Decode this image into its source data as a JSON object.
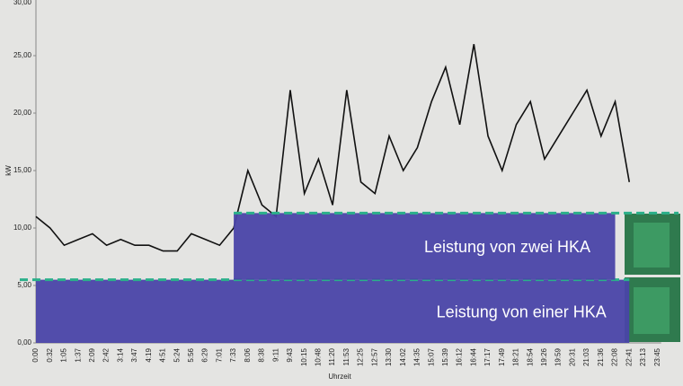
{
  "chart_data": {
    "type": "line",
    "y_label": "kW",
    "x_label": "Uhrzeit",
    "categories": [
      "0:00",
      "0:32",
      "1:05",
      "1:37",
      "2:09",
      "2:42",
      "3:14",
      "3:47",
      "4:19",
      "4:51",
      "5:24",
      "5:56",
      "6:29",
      "7:01",
      "7:33",
      "8:06",
      "8:38",
      "9:11",
      "9:43",
      "10:15",
      "10:48",
      "11:20",
      "11:53",
      "12:25",
      "12:57",
      "13:30",
      "14:02",
      "14:35",
      "15:07",
      "15:39",
      "16:12",
      "16:44",
      "17:17",
      "17:49",
      "18:21",
      "18:54",
      "19:26",
      "19:59",
      "20:31",
      "21:03",
      "21:36",
      "22:08",
      "22:41",
      "23:13",
      "23:45"
    ],
    "series": [
      {
        "color": "#111111",
        "values": [
          11,
          10,
          8.5,
          9,
          9.5,
          8.5,
          9,
          8.5,
          8.5,
          8,
          8,
          9.5,
          9,
          8.5,
          10,
          15,
          12,
          11,
          22,
          13,
          16,
          12,
          22,
          14,
          13,
          18,
          15,
          17,
          21,
          24,
          19,
          26,
          18,
          15,
          19,
          21,
          16,
          18,
          20,
          22,
          18,
          21,
          14,
          null,
          null
        ]
      }
    ],
    "ylim": [
      0,
      30
    ],
    "yticks": [
      {
        "value": 0,
        "label": "0,00"
      },
      {
        "value": 5,
        "label": "5,00"
      },
      {
        "value": 10,
        "label": "10,00"
      },
      {
        "value": 15,
        "label": "15,00"
      },
      {
        "value": 20,
        "label": "20,00"
      },
      {
        "value": 25,
        "label": "25,00"
      },
      {
        "value": 30,
        "label": "30,00"
      }
    ],
    "bands": [
      {
        "text": "Leistung von einer HKA",
        "ymin": 0,
        "ymax": 5.5,
        "start": "0:00",
        "end": "22:41",
        "color": "#4a44a8",
        "line_color": "#2bb08a"
      },
      {
        "text": "Leistung von zwei HKA",
        "ymin": 5.5,
        "ymax": 11.3,
        "start": "7:33",
        "end": "22:08",
        "color": "#4a44a8",
        "line_color": "#2bb08a"
      }
    ]
  }
}
